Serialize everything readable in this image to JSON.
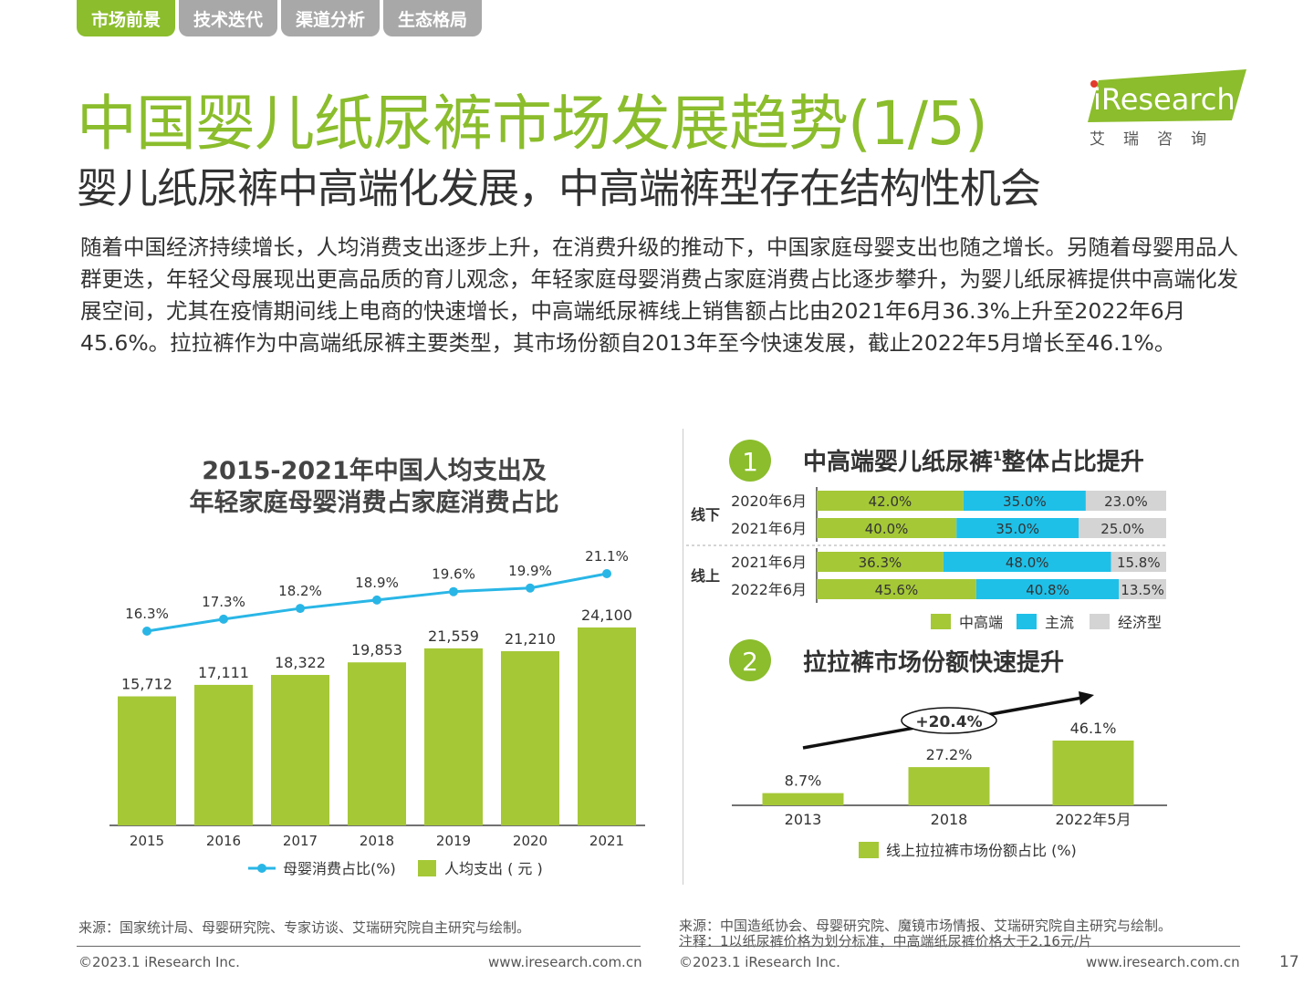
{
  "tabs": [
    {
      "label": "市场前景",
      "active": true
    },
    {
      "label": "技术迭代",
      "active": false
    },
    {
      "label": "渠道分析",
      "active": false
    },
    {
      "label": "生态格局",
      "active": false
    }
  ],
  "title": "中国婴儿纸尿裤市场发展趋势(1/5)",
  "subtitle": "婴儿纸尿裤中高端化发展，中高端裤型存在结构性机会",
  "body": "随着中国经济持续增长，人均消费支出逐步上升，在消费升级的推动下，中国家庭母婴支出也随之增长。另随着母婴用品人群更迭，年轻父母展现出更高品质的育儿观念，年轻家庭母婴消费占家庭消费占比逐步攀升，为婴儿纸尿裤提供中高端化发展空间，尤其在疫情期间线上电商的快速增长，中高端纸尿裤线上销售额占比由2021年6月36.3%上升至2022年6月45.6%。拉拉裤作为中高端纸尿裤主要类型，其市场份额自2013年至今快速发展，截止2022年5月增长至46.1%。",
  "logo": {
    "text": "iResearch",
    "cn": "艾瑞咨询"
  },
  "colors": {
    "green": "#8bbd2c",
    "bar_green": "#a5c837",
    "cyan": "#1ec0e8",
    "gray": "#d4d4d4",
    "line": "#29b6e6"
  },
  "chart_data": [
    {
      "type": "bar+line",
      "title_line1": "2015-2021年中国人均支出及",
      "title_line2": "年轻家庭母婴消费占家庭消费占比",
      "categories": [
        "2015",
        "2016",
        "2017",
        "2018",
        "2019",
        "2020",
        "2021"
      ],
      "series": [
        {
          "name": "人均支出（元）",
          "kind": "bar",
          "values": [
            15712,
            17111,
            18322,
            19853,
            21559,
            21210,
            24100
          ],
          "labels": [
            "15,712",
            "17,111",
            "18,322",
            "19,853",
            "21,559",
            "21,210",
            "24,100"
          ]
        },
        {
          "name": "母婴消费占比(%)",
          "kind": "line",
          "values": [
            16.3,
            17.3,
            18.2,
            18.9,
            19.6,
            19.9,
            21.1
          ],
          "labels": [
            "16.3%",
            "17.3%",
            "18.2%",
            "18.9%",
            "19.6%",
            "19.9%",
            "21.1%"
          ]
        }
      ],
      "legend": {
        "line": "母婴消费占比(%)",
        "bar": "人均支出 ( 元 )"
      },
      "legend_placement": "bottom"
    },
    {
      "type": "stacked-bar-horizontal",
      "number": "1",
      "title": "中高端婴儿纸尿裤",
      "title_sup": "1",
      "title_tail": "整体占比提升",
      "groups": [
        {
          "name": "线下",
          "rows": [
            {
              "label": "2020年6月",
              "values": [
                42.0,
                35.0,
                23.0
              ],
              "texts": [
                "42.0%",
                "35.0%",
                "23.0%"
              ]
            },
            {
              "label": "2021年6月",
              "values": [
                40.0,
                35.0,
                25.0
              ],
              "texts": [
                "40.0%",
                "35.0%",
                "25.0%"
              ]
            }
          ]
        },
        {
          "name": "线上",
          "rows": [
            {
              "label": "2021年6月",
              "values": [
                36.3,
                48.0,
                15.8
              ],
              "texts": [
                "36.3%",
                "48.0%",
                "15.8%"
              ]
            },
            {
              "label": "2022年6月",
              "values": [
                45.6,
                40.8,
                13.5
              ],
              "texts": [
                "45.6%",
                "40.8%",
                "13.5%"
              ]
            }
          ]
        }
      ],
      "legend": [
        "中高端",
        "主流",
        "经济型"
      ],
      "legend_placement": "bottom-right"
    },
    {
      "type": "bar",
      "number": "2",
      "title": "拉拉裤市场份额快速提升",
      "categories": [
        "2013",
        "2018",
        "2022年5月"
      ],
      "values": [
        8.7,
        27.2,
        46.1
      ],
      "labels": [
        "8.7%",
        "27.2%",
        "46.1%"
      ],
      "annotation": "+20.4%",
      "legend": "线上拉拉裤市场份额占比 (%)"
    }
  ],
  "footer": {
    "source_left": "来源：国家统计局、母婴研究院、专家访谈、艾瑞研究院自主研究与绘制。",
    "source_right": "来源：中国造纸协会、母婴研究院、魔镜市场情报、艾瑞研究院自主研究与绘制。",
    "note_right": "注释：1以纸尿裤价格为划分标准，中高端纸尿裤价格大于2.16元/片",
    "copyright": "©2023.1 iResearch Inc.",
    "website": "www.iresearch.com.cn",
    "page": "17"
  }
}
